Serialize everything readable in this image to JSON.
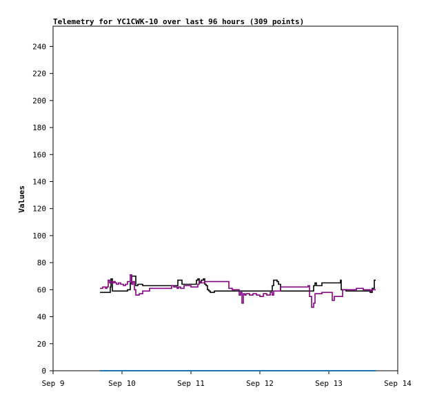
{
  "chart_data": {
    "type": "line",
    "title": "Telemetry for YC1CWK-10 over last 96 hours (309 points)",
    "xlabel": "",
    "ylabel": "Values",
    "ylim": [
      0,
      255
    ],
    "xlim": [
      0,
      5
    ],
    "yticks": [
      0,
      20,
      40,
      60,
      80,
      100,
      120,
      140,
      160,
      180,
      200,
      220,
      240
    ],
    "xticks": [
      {
        "x": 0,
        "label": "Sep 9"
      },
      {
        "x": 1,
        "label": "Sep 10"
      },
      {
        "x": 2,
        "label": "Sep 11"
      },
      {
        "x": 3,
        "label": "Sep 12"
      },
      {
        "x": 4,
        "label": "Sep 13"
      },
      {
        "x": 5,
        "label": "Sep 14"
      }
    ],
    "grid": false,
    "legend": "none",
    "series": [
      {
        "color": "#000000",
        "step": true,
        "x": [
          0.68,
          0.81,
          0.83,
          0.84,
          0.86,
          1.05,
          1.08,
          1.12,
          1.14,
          1.2,
          1.23,
          1.26,
          1.28,
          1.3,
          1.35,
          1.4,
          1.45,
          1.5,
          1.6,
          1.7,
          1.8,
          1.81,
          1.83,
          1.87,
          1.9,
          2.05,
          2.08,
          2.1,
          2.12,
          2.15,
          2.18,
          2.2,
          2.22,
          2.24,
          2.26,
          2.28,
          2.3,
          2.32,
          2.34,
          2.36,
          2.38,
          2.4,
          2.42,
          2.44,
          2.5,
          2.55,
          2.6,
          2.65,
          2.7,
          2.72,
          2.74,
          2.76,
          2.8,
          2.9,
          3.0,
          3.1,
          3.16,
          3.18,
          3.2,
          3.22,
          3.25,
          3.27,
          3.3,
          3.5,
          3.7,
          3.76,
          3.78,
          3.8,
          3.82,
          3.9,
          4.0,
          4.05,
          4.1,
          4.15,
          4.17,
          4.18,
          4.2,
          4.25,
          4.3,
          4.4,
          4.5,
          4.55,
          4.58,
          4.6,
          4.63,
          4.66,
          4.68
        ],
        "values": [
          58,
          58,
          62,
          68,
          59,
          59,
          60,
          65,
          70,
          63,
          64,
          64,
          64,
          63,
          63,
          63,
          63,
          63,
          63,
          63,
          63,
          67,
          67,
          64,
          64,
          64,
          67,
          68,
          65,
          67,
          68,
          64,
          63,
          60,
          59,
          58,
          58,
          58,
          59,
          59,
          59,
          59,
          59,
          59,
          59,
          59,
          59,
          59,
          59,
          59,
          59,
          59,
          59,
          59,
          59,
          59,
          59,
          63,
          67,
          67,
          66,
          64,
          59,
          59,
          59,
          59,
          63,
          65,
          63,
          65,
          65,
          65,
          65,
          65,
          67,
          60,
          60,
          59,
          59,
          59,
          59,
          59,
          59,
          58,
          61,
          67,
          67
        ]
      },
      {
        "color": "#800080",
        "step": true,
        "x": [
          0.68,
          0.72,
          0.76,
          0.78,
          0.8,
          0.82,
          0.84,
          0.86,
          0.88,
          0.9,
          0.92,
          0.95,
          0.98,
          1.0,
          1.02,
          1.05,
          1.08,
          1.12,
          1.14,
          1.16,
          1.18,
          1.2,
          1.25,
          1.3,
          1.4,
          1.5,
          1.6,
          1.7,
          1.72,
          1.75,
          1.8,
          1.82,
          1.85,
          1.9,
          2.0,
          2.05,
          2.1,
          2.12,
          2.15,
          2.2,
          2.25,
          2.3,
          2.4,
          2.5,
          2.55,
          2.6,
          2.65,
          2.7,
          2.72,
          2.74,
          2.76,
          2.78,
          2.8,
          2.85,
          2.9,
          2.95,
          3.0,
          3.05,
          3.1,
          3.15,
          3.18,
          3.2,
          3.25,
          3.3,
          3.4,
          3.5,
          3.6,
          3.7,
          3.72,
          3.75,
          3.78,
          3.8,
          3.85,
          3.9,
          3.95,
          4.0,
          4.05,
          4.08,
          4.1,
          4.15,
          4.2,
          4.25,
          4.3,
          4.4,
          4.5,
          4.55,
          4.6,
          4.62,
          4.66,
          4.68
        ],
        "values": [
          61,
          62,
          61,
          62,
          67,
          65,
          66,
          65,
          66,
          65,
          64,
          65,
          64,
          64,
          63,
          64,
          66,
          71,
          64,
          66,
          60,
          56,
          57,
          59,
          61,
          61,
          61,
          61,
          63,
          62,
          61,
          62,
          61,
          63,
          62,
          62,
          64,
          66,
          65,
          66,
          66,
          66,
          66,
          66,
          61,
          60,
          60,
          56,
          58,
          50,
          57,
          56,
          57,
          56,
          57,
          56,
          55,
          57,
          56,
          58,
          56,
          59,
          59,
          62,
          62,
          62,
          62,
          63,
          55,
          47,
          50,
          57,
          57,
          58,
          58,
          58,
          52,
          55,
          55,
          55,
          60,
          60,
          60,
          61,
          60,
          60,
          59,
          60,
          60,
          60
        ]
      },
      {
        "color": "#1a73b8",
        "step": false,
        "x": [
          0.68,
          4.68
        ],
        "values": [
          0,
          0
        ]
      }
    ]
  }
}
